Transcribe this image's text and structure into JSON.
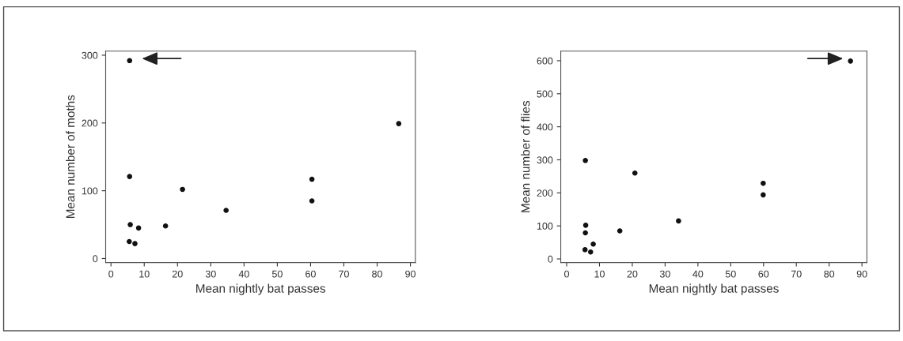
{
  "chart_data": [
    {
      "type": "scatter",
      "xlabel": "Mean nightly bat passes",
      "ylabel": "Mean number of moths",
      "xlim": [
        -1.6,
        91.5
      ],
      "ylim": [
        -6,
        306
      ],
      "xticks": [
        0,
        10,
        20,
        30,
        40,
        50,
        60,
        70,
        80,
        90
      ],
      "yticks": [
        0,
        100,
        200,
        300
      ],
      "marker": "circle",
      "grid": false,
      "series": [
        {
          "color": "#111111",
          "x": [
            5.6,
            5.6,
            5.8,
            8.3,
            5.5,
            7.2,
            16.4,
            21.5,
            34.6,
            60.4,
            60.4,
            86.5
          ],
          "values": [
            292,
            121,
            50,
            45,
            25,
            22,
            48,
            102,
            71,
            117,
            85,
            199
          ]
        }
      ]
    },
    {
      "type": "scatter",
      "xlabel": "Mean nightly bat passes",
      "ylabel": "Mean number of flies",
      "xlim": [
        -1.8,
        91.5
      ],
      "ylim": [
        -11,
        629
      ],
      "xticks": [
        0,
        10,
        20,
        30,
        40,
        50,
        60,
        70,
        80,
        90
      ],
      "yticks": [
        0,
        100,
        200,
        300,
        400,
        500,
        600
      ],
      "marker": "circle",
      "grid": false,
      "series": [
        {
          "color": "#111111",
          "x": [
            86.5,
            5.7,
            20.8,
            59.9,
            59.9,
            34.1,
            16.2,
            5.8,
            5.7,
            8.1,
            5.6,
            7.3
          ],
          "values": [
            599,
            298,
            260,
            229,
            194,
            115,
            85,
            102,
            79,
            45,
            28,
            21
          ]
        }
      ]
    }
  ]
}
